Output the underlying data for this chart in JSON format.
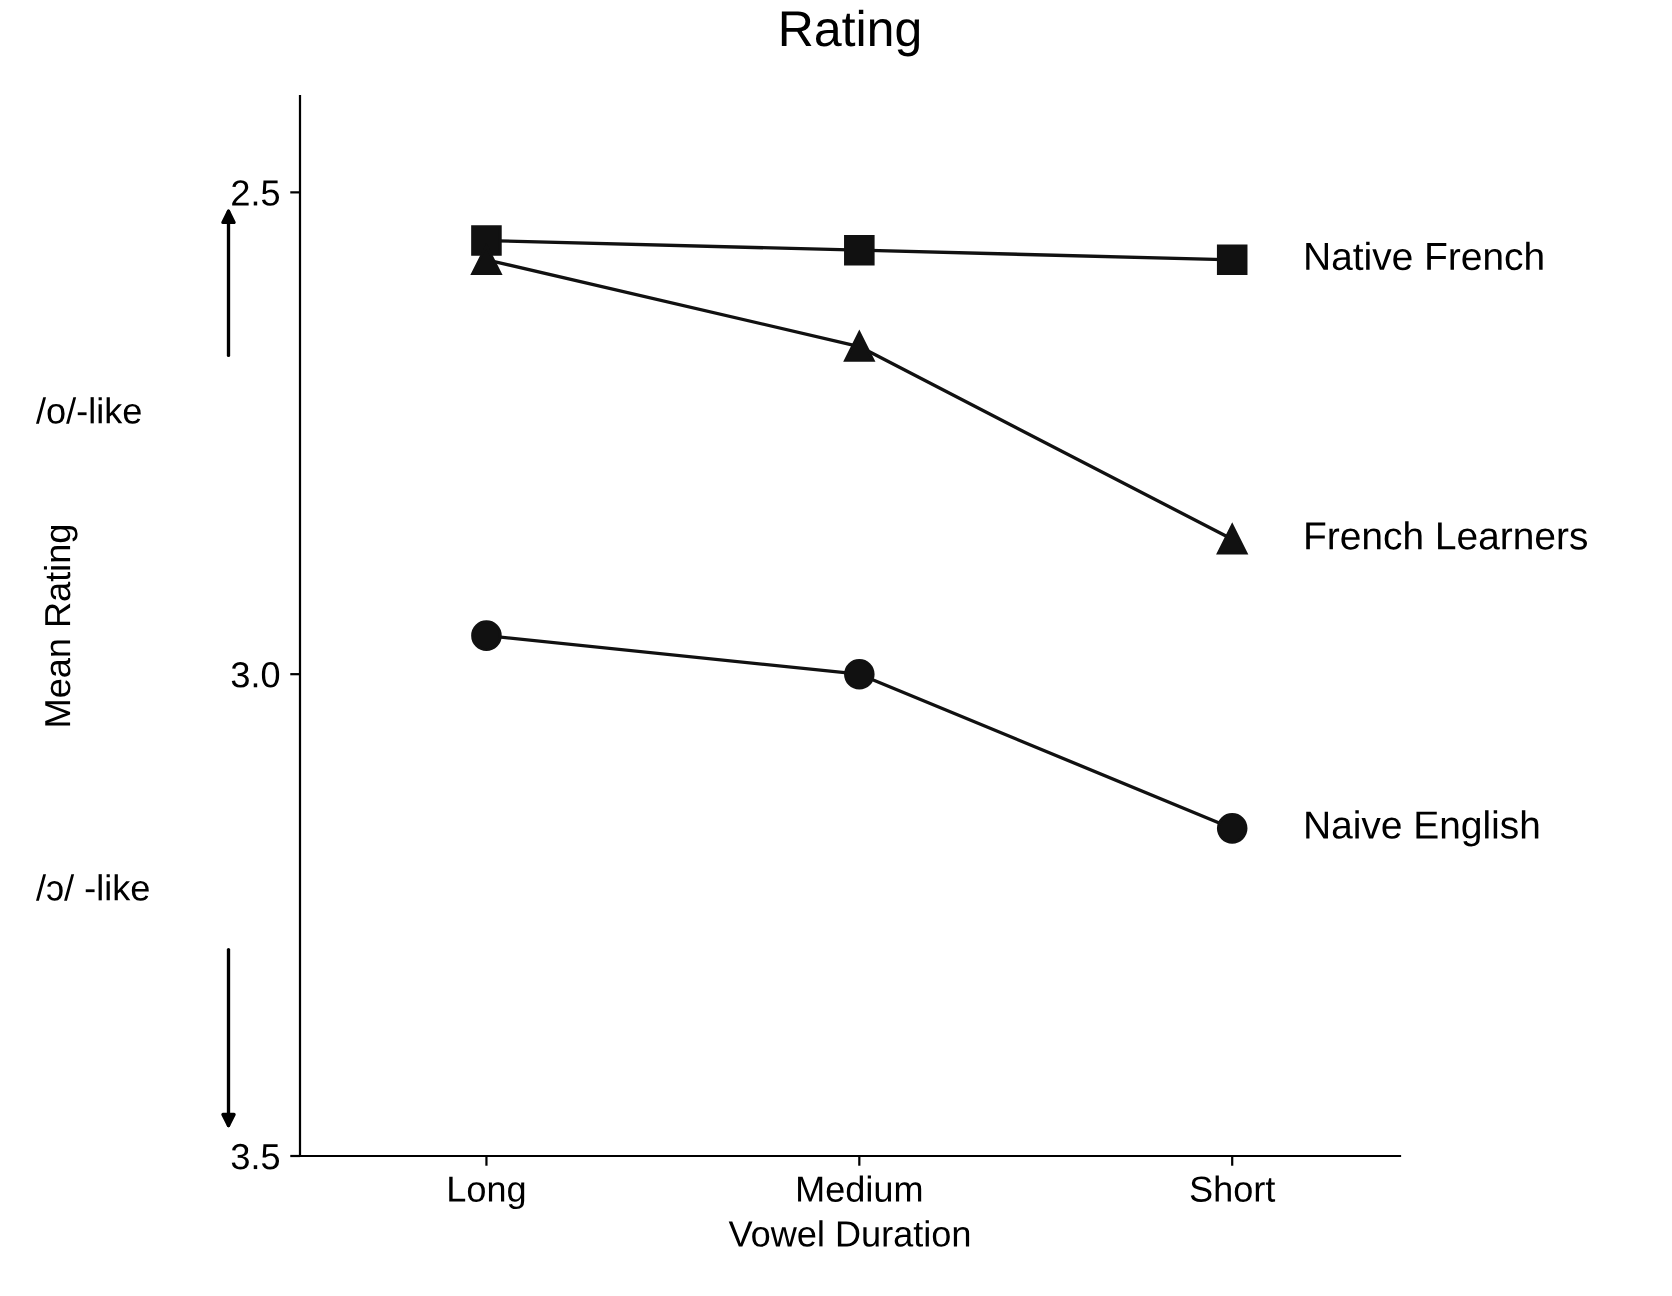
{
  "chart_data": {
    "type": "line",
    "title": "Rating",
    "xlabel": "Vowel Duration",
    "ylabel": "Mean Rating",
    "categories": [
      "Long",
      "Medium",
      "Short"
    ],
    "series": [
      {
        "name": "Native French",
        "color": "#111111",
        "marker": "square",
        "values": [
          2.55,
          2.56,
          2.57
        ]
      },
      {
        "name": "French Learners",
        "color": "#111111",
        "marker": "triangle",
        "values": [
          2.57,
          2.66,
          2.86
        ]
      },
      {
        "name": "Naive English",
        "color": "#111111",
        "marker": "circle",
        "values": [
          2.96,
          3.0,
          3.16
        ]
      }
    ],
    "ylim": [
      3.5,
      2.4
    ],
    "yticks": [
      2.5,
      {
        "value": 3,
        "label": "3.0"
      },
      3.5
    ],
    "annotations": [
      "/o/-like",
      "/ɔ/ -like"
    ],
    "grid": false,
    "legend": false,
    "line_style": "solid"
  }
}
